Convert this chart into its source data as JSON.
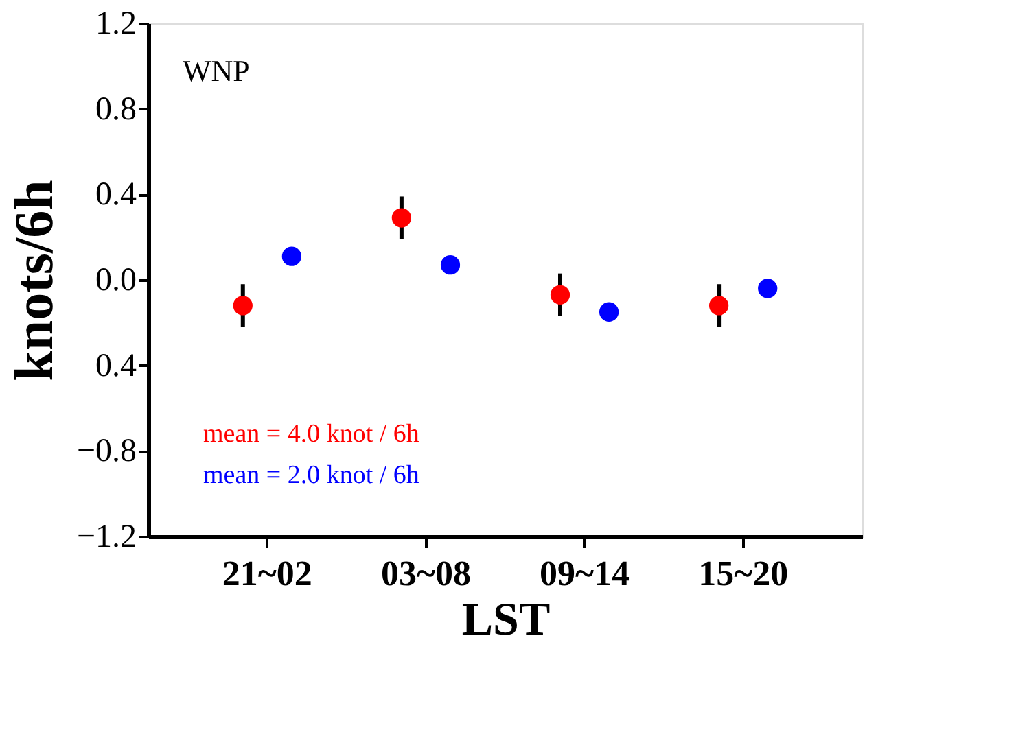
{
  "chart_data": {
    "type": "scatter",
    "xlabel": "LST",
    "ylabel": "knots/6h",
    "categories": [
      "21~02",
      "03~08",
      "09~14",
      "15~20"
    ],
    "series": [
      {
        "name": "mean = 4.0 knot / 6h",
        "color": "#ff0000",
        "values": [
          -0.12,
          0.29,
          -0.07,
          -0.12
        ],
        "errors": [
          0.1,
          0.1,
          0.1,
          0.1
        ]
      },
      {
        "name": "mean = 2.0 knot / 6h",
        "color": "#0000ff",
        "values": [
          0.11,
          0.07,
          -0.15,
          -0.04
        ],
        "errors": [
          null,
          null,
          null,
          null
        ]
      }
    ],
    "ylim": [
      -1.2,
      1.2
    ],
    "yticks": [
      1.2,
      0.8,
      0.4,
      {
        "value": 0,
        "label": "0.0"
      },
      {
        "value": -0.4,
        "label": "0.4"
      },
      {
        "value": -0.8,
        "label": "−0.8"
      },
      {
        "value": -1.2,
        "label": "−1.2"
      }
    ],
    "annotations": [
      "WNP"
    ],
    "marker": "circle",
    "grid": false,
    "legend": "bottom left"
  }
}
